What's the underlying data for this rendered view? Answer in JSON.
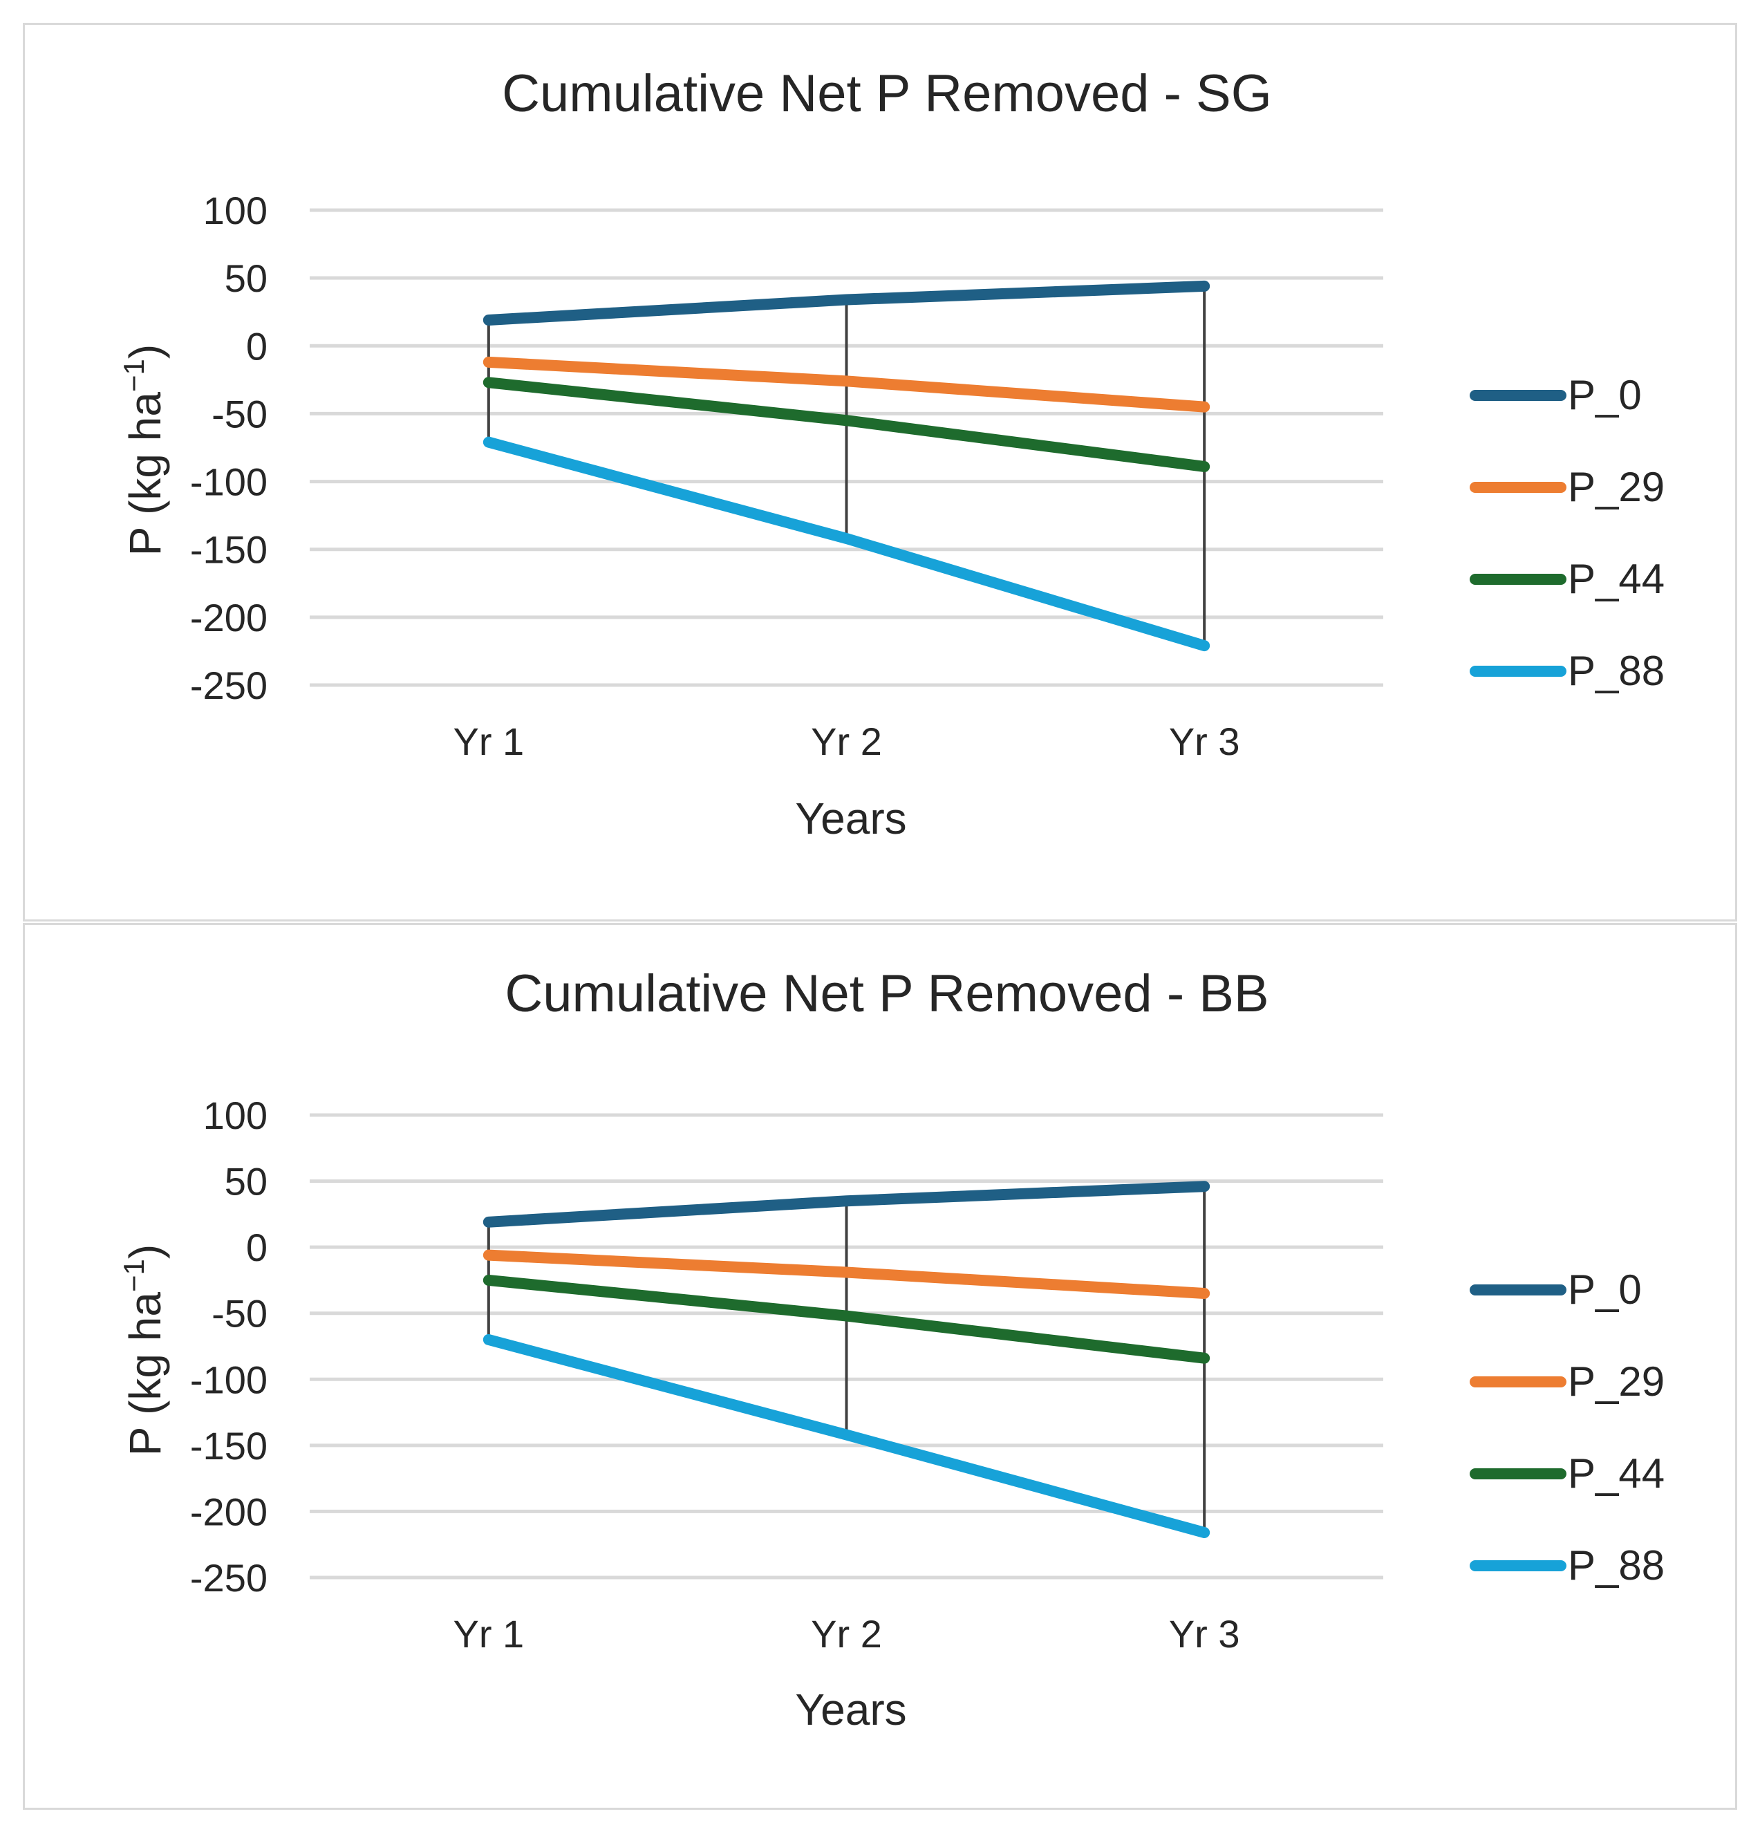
{
  "chart_data": [
    {
      "type": "line",
      "title": "Cumulative Net P Removed - SG",
      "xlabel": "Years",
      "ylabel": "P (kg ha",
      "ylabel_sup": "−1",
      "ylabel_close": ")",
      "categories": [
        "Yr 1",
        "Yr 2",
        "Yr 3"
      ],
      "ylim": [
        -250,
        100
      ],
      "yticks": [
        100,
        50,
        0,
        -50,
        -100,
        -150,
        -200,
        -250
      ],
      "ytick_labels": [
        "100",
        "50",
        "0",
        "-50",
        "-100",
        "-150",
        "-200",
        "-250"
      ],
      "grid": true,
      "legend": "right",
      "series": [
        {
          "name": "P_0",
          "color": "#1f5f85",
          "values": [
            19,
            34,
            44
          ]
        },
        {
          "name": "P_29",
          "color": "#ed7d31",
          "values": [
            -12,
            -26,
            -45
          ]
        },
        {
          "name": "P_44",
          "color": "#1e6b2d",
          "values": [
            -27,
            -55,
            -89
          ]
        },
        {
          "name": "P_88",
          "color": "#17a2d8",
          "values": [
            -71,
            -142,
            -221
          ]
        }
      ],
      "drop_lines": true,
      "drop_line_color": "#404040"
    },
    {
      "type": "line",
      "title": "Cumulative Net P Removed - BB",
      "xlabel": "Years",
      "ylabel": "P (kg ha",
      "ylabel_sup": "−1",
      "ylabel_close": ")",
      "categories": [
        "Yr 1",
        "Yr 2",
        "Yr 3"
      ],
      "ylim": [
        -250,
        100
      ],
      "yticks": [
        100,
        50,
        0,
        -50,
        -100,
        -150,
        -200,
        -250
      ],
      "ytick_labels": [
        "100",
        "50",
        "0",
        "-50",
        "-100",
        "-150",
        "-200",
        "-250"
      ],
      "grid": true,
      "legend": "right",
      "series": [
        {
          "name": "P_0",
          "color": "#1f5f85",
          "values": [
            19,
            35,
            46
          ]
        },
        {
          "name": "P_29",
          "color": "#ed7d31",
          "values": [
            -6,
            -19,
            -35
          ]
        },
        {
          "name": "P_44",
          "color": "#1e6b2d",
          "values": [
            -25,
            -52,
            -84
          ]
        },
        {
          "name": "P_88",
          "color": "#17a2d8",
          "values": [
            -70,
            -142,
            -216
          ]
        }
      ],
      "drop_lines": true,
      "drop_line_color": "#404040"
    }
  ]
}
